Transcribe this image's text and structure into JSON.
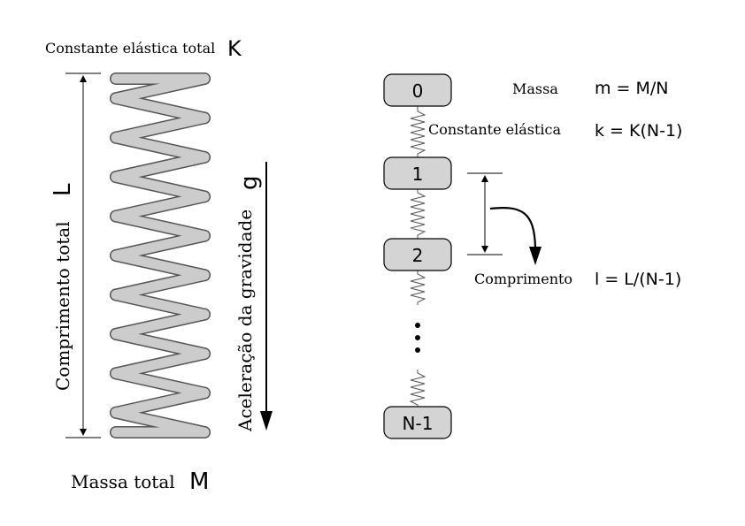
{
  "left_panel": {
    "top_label": "Constante elástica total",
    "top_symbol": "K",
    "length_label": "Comprimento total",
    "length_symbol": "L",
    "gravity_label": "Aceleração da gravidade",
    "gravity_symbol": "g",
    "bottom_label": "Massa total",
    "bottom_symbol": "M"
  },
  "right_panel": {
    "masses": [
      "0",
      "1",
      "2",
      "N-1"
    ],
    "ellipsis": "⋮",
    "mass_label": "Massa",
    "mass_formula": "m = M/N",
    "spring_label": "Constante elástica",
    "spring_formula": "k = K(N-1)",
    "length_label": "Comprimento",
    "length_formula": "l = L/(N-1)"
  },
  "colors": {
    "coil_fill": "#cccccc",
    "box_fill": "#d4d4d4",
    "stroke": "#000000"
  }
}
